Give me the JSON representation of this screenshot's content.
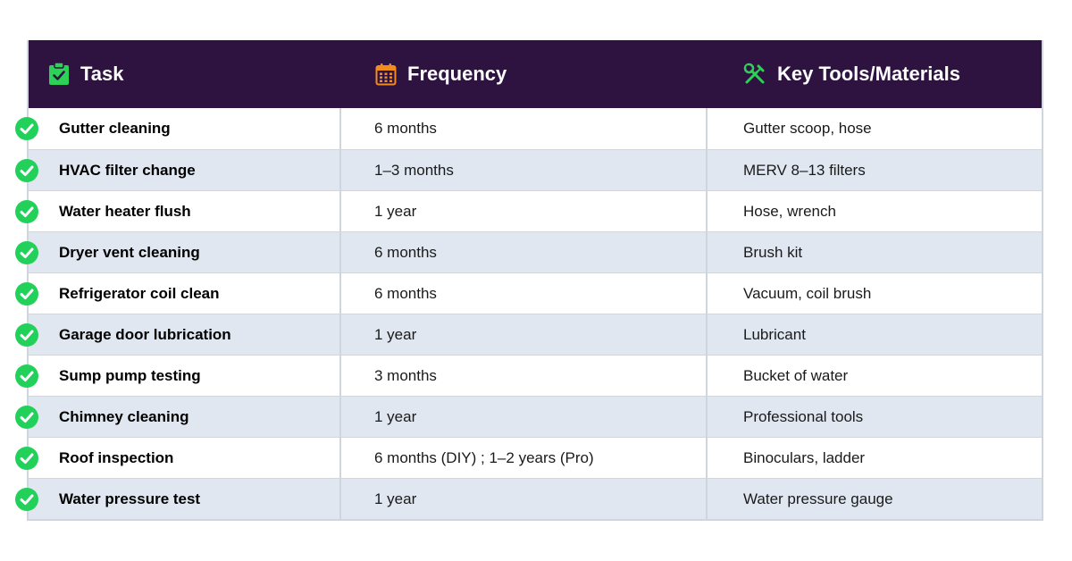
{
  "header": {
    "task": "Task",
    "frequency": "Frequency",
    "tools": "Key Tools/Materials"
  },
  "colors": {
    "header_bg": "#2e1340",
    "task_icon": "#2ed158",
    "frequency_icon": "#f28c1e",
    "tools_icon": "#2ed158",
    "check": "#22d15a",
    "alt_row": "#e0e7f0"
  },
  "icons": {
    "task": "clipboard-check-icon",
    "frequency": "calendar-icon",
    "tools": "tools-icon",
    "row": "check-circle-icon"
  },
  "rows": [
    {
      "task": "Gutter cleaning",
      "frequency": "6 months",
      "tools": "Gutter scoop, hose"
    },
    {
      "task": "HVAC filter change",
      "frequency": "1–3 months",
      "tools": "MERV 8–13 filters"
    },
    {
      "task": "Water heater flush",
      "frequency": "1 year",
      "tools": "Hose, wrench"
    },
    {
      "task": "Dryer vent cleaning",
      "frequency": "6 months",
      "tools": "Brush kit"
    },
    {
      "task": "Refrigerator coil clean",
      "frequency": "6 months",
      "tools": "Vacuum, coil brush"
    },
    {
      "task": "Garage door lubrication",
      "frequency": "1 year",
      "tools": "Lubricant"
    },
    {
      "task": "Sump pump testing",
      "frequency": "3 months",
      "tools": "Bucket of water"
    },
    {
      "task": "Chimney cleaning",
      "frequency": "1 year",
      "tools": "Professional tools"
    },
    {
      "task": "Roof inspection",
      "frequency": "6 months (DIY) ; 1–2 years (Pro)",
      "tools": "Binoculars, ladder"
    },
    {
      "task": "Water pressure test",
      "frequency": "1 year",
      "tools": "Water pressure gauge"
    }
  ]
}
